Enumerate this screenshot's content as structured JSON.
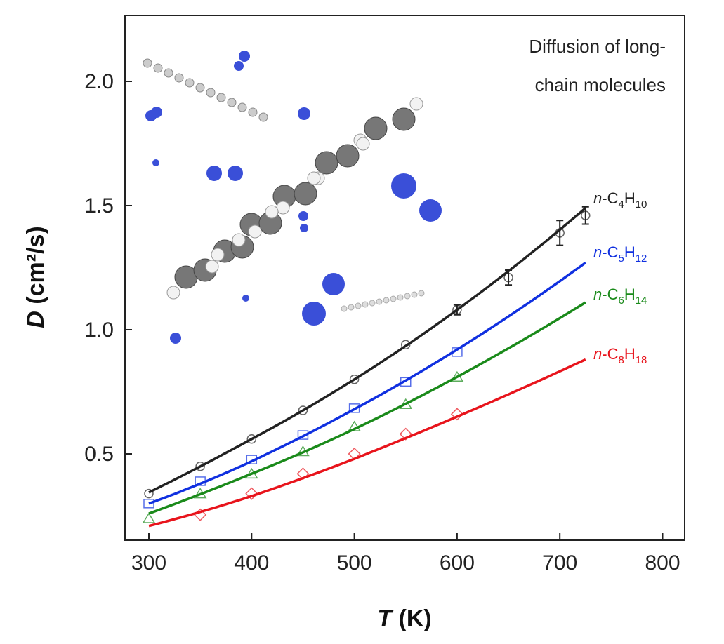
{
  "chart_data": {
    "type": "line",
    "title": "",
    "annotation": [
      "Diffusion of long-",
      "chain molecules"
    ],
    "xlabel": {
      "italic": "T",
      "rest": " (K)"
    },
    "ylabel": {
      "italic": "D",
      "rest": " (cm²/s)"
    },
    "xlim": [
      277,
      1000
    ],
    "ylim": [
      0.16,
      2.28
    ],
    "xticks": [
      300,
      400,
      500,
      600,
      700,
      800
    ],
    "yticks": [
      0.5,
      1.0,
      1.5,
      2.0
    ],
    "ytick_labels": [
      "0.5",
      "1.0",
      "1.5",
      "2.0"
    ],
    "series": [
      {
        "name": "n-C4H10",
        "label": {
          "n": "n",
          "a": "-C",
          "s1": "4",
          "b": "H",
          "s2": "10"
        },
        "color": "#222222",
        "marker": "circle",
        "x": [
          300,
          350,
          400,
          450,
          500,
          550,
          600,
          650,
          700,
          725
        ],
        "y": [
          0.34,
          0.45,
          0.56,
          0.675,
          0.8,
          0.94,
          1.08,
          1.21,
          1.39,
          1.46
        ],
        "err": [
          0,
          0,
          0,
          0,
          0,
          0,
          0.02,
          0.03,
          0.05,
          0.035
        ],
        "fit_x": [
          300,
          400,
          500,
          600,
          725
        ],
        "fit_y": [
          0.345,
          0.56,
          0.8,
          1.08,
          1.49
        ]
      },
      {
        "name": "n-C5H12",
        "label": {
          "n": "n",
          "a": "-C",
          "s1": "5",
          "b": "H",
          "s2": "12"
        },
        "color": "#1030e0",
        "marker": "square",
        "x": [
          300,
          350,
          400,
          450,
          500,
          550,
          600
        ],
        "y": [
          0.3,
          0.39,
          0.477,
          0.576,
          0.684,
          0.79,
          0.91
        ],
        "fit_x": [
          300,
          400,
          500,
          600,
          725
        ],
        "fit_y": [
          0.3,
          0.47,
          0.68,
          0.92,
          1.27
        ]
      },
      {
        "name": "n-C6H14",
        "label": {
          "n": "n",
          "a": "-C",
          "s1": "6",
          "b": "H",
          "s2": "14"
        },
        "color": "#1a8a1a",
        "marker": "triangle",
        "x": [
          300,
          350,
          400,
          450,
          500,
          550,
          600
        ],
        "y": [
          0.24,
          0.34,
          0.42,
          0.51,
          0.61,
          0.7,
          0.81
        ],
        "fit_x": [
          300,
          400,
          500,
          600,
          725
        ],
        "fit_y": [
          0.26,
          0.42,
          0.6,
          0.81,
          1.11
        ]
      },
      {
        "name": "n-C8H18",
        "label": {
          "n": "n",
          "a": "-C",
          "s1": "8",
          "b": "H",
          "s2": "18"
        },
        "color": "#e8141c",
        "marker": "diamond",
        "x": [
          350,
          400,
          450,
          500,
          550,
          600
        ],
        "y": [
          0.255,
          0.34,
          0.42,
          0.5,
          0.58,
          0.66
        ],
        "fit_x": [
          300,
          400,
          500,
          600,
          725
        ],
        "fit_y": [
          0.21,
          0.33,
          0.48,
          0.65,
          0.88
        ]
      }
    ],
    "grid": false,
    "legend": "inline-right"
  }
}
